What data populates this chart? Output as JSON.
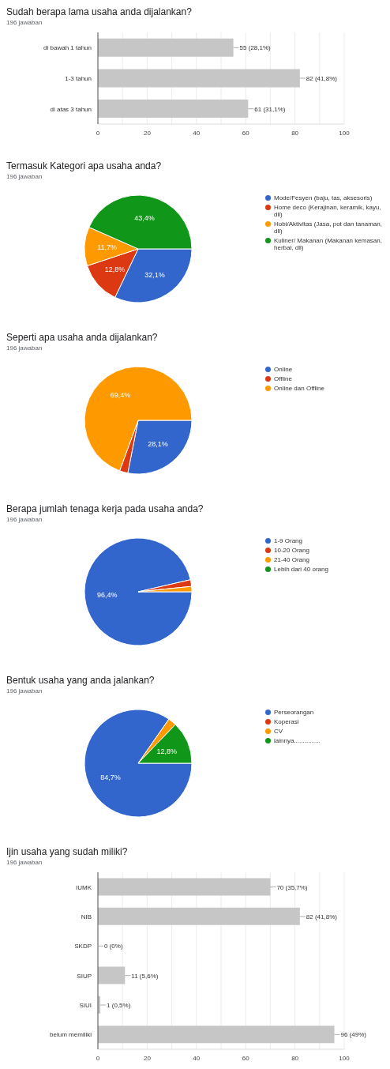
{
  "chart_data": [
    {
      "type": "bar",
      "orientation": "horizontal",
      "title": "Sudah berapa lama usaha anda dijalankan?",
      "subtitle": "196 jawaban",
      "categories": [
        "di bawah 1 tahun",
        "1-3 tahun",
        "di atas 3 tahun"
      ],
      "values": [
        55,
        82,
        61
      ],
      "value_labels": [
        "55 (28,1%)",
        "82 (41,8%)",
        "61 (31,1%)"
      ],
      "color": "#c6c6c6",
      "xlim": [
        0,
        100
      ],
      "xticks": [
        0,
        {
          "value": 10,
          "label": null
        },
        20,
        {
          "value": 30,
          "label": null
        },
        40,
        {
          "value": 50,
          "label": null
        },
        60,
        {
          "value": 70,
          "label": null
        },
        80,
        {
          "value": 90,
          "label": null
        },
        100
      ],
      "grid": "x",
      "legend": false
    },
    {
      "type": "pie",
      "title": "Termasuk Kategori apa usaha anda?",
      "subtitle": "196 jawaban",
      "categories": [
        "Mode/Fesyen (baju, tas, aksesoris)",
        "Home deco (Kerajinan, keramik, kayu, dll)",
        "Hobi/Aktivitas (Jasa, pot dan tanaman, dll)",
        "Kuliner/ Makanan (Makanan kemasan, herbal, dll)"
      ],
      "values": [
        32.1,
        12.8,
        11.7,
        43.4
      ],
      "value_labels": [
        "32,1%",
        "12,8%",
        "11,7%",
        "43,4%"
      ],
      "colors": [
        "#3366cc",
        "#dc3912",
        "#ff9900",
        "#109618"
      ],
      "legend": "right"
    },
    {
      "type": "pie",
      "title": "Seperti apa usaha anda dijalankan?",
      "subtitle": "196 jawaban",
      "categories": [
        "Online",
        "Offline",
        "Online dan Offline"
      ],
      "values": [
        28.1,
        2.5,
        69.4
      ],
      "value_labels": [
        "28,1%",
        null,
        "69,4%"
      ],
      "colors": [
        "#3366cc",
        "#dc3912",
        "#ff9900"
      ],
      "legend": "right"
    },
    {
      "type": "pie",
      "title": "Berapa jumlah tenaga kerja pada usaha anda?",
      "subtitle": "196 jawaban",
      "categories": [
        "1-9 Orang",
        "10-20 Orang",
        "21-40 Orang",
        "Lebih dari 40 orang"
      ],
      "values": [
        96.4,
        2.0,
        1.6,
        0
      ],
      "value_labels": [
        "96,4%",
        null,
        null,
        null
      ],
      "colors": [
        "#3366cc",
        "#dc3912",
        "#ff9900",
        "#109618"
      ],
      "legend": "right"
    },
    {
      "type": "pie",
      "title": "Bentuk usaha yang anda jalankan?",
      "subtitle": "196 jawaban",
      "categories": [
        "Perseorangan",
        "Koperasi",
        "CV",
        "lainnya..............."
      ],
      "values": [
        84.7,
        0,
        2.5,
        12.8
      ],
      "value_labels": [
        "84,7%",
        null,
        null,
        "12,8%"
      ],
      "colors": [
        "#3366cc",
        "#dc3912",
        "#ff9900",
        "#109618"
      ],
      "legend": "right"
    },
    {
      "type": "bar",
      "orientation": "horizontal",
      "title": "Ijin usaha yang sudah miliki?",
      "subtitle": "196 jawaban",
      "categories": [
        "IUMK",
        "NIB",
        "SKDP",
        "SIUP",
        "SIUI",
        "belum memiliki"
      ],
      "values": [
        70,
        82,
        0,
        11,
        1,
        96
      ],
      "value_labels": [
        "70 (35,7%)",
        "82 (41,8%)",
        "0 (0%)",
        "11 (5,6%)",
        "1 (0,5%)",
        "96 (49%)"
      ],
      "color": "#c6c6c6",
      "xlim": [
        0,
        100
      ],
      "xticks": [
        0,
        {
          "value": 10,
          "label": null
        },
        20,
        {
          "value": 30,
          "label": null
        },
        40,
        {
          "value": 50,
          "label": null
        },
        60,
        {
          "value": 70,
          "label": null
        },
        80,
        {
          "value": 90,
          "label": null
        },
        100
      ],
      "grid": "x",
      "legend": false
    }
  ]
}
